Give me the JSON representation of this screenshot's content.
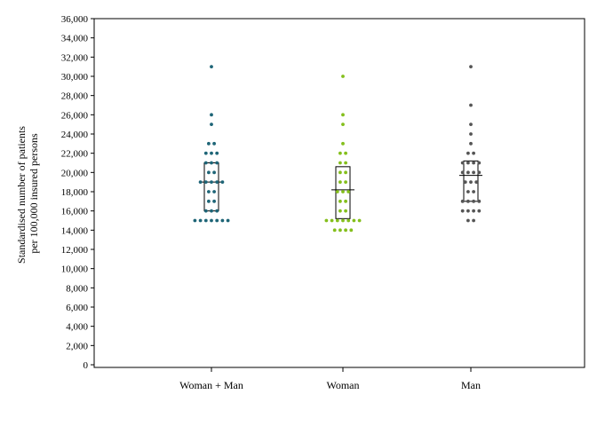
{
  "chart_data": {
    "type": "scatter",
    "subtype": "dot-strip-with-iqr-box",
    "ylabel": [
      "Standardised number of patients",
      "per 100,000 insured persons"
    ],
    "ylim": [
      0,
      36000
    ],
    "yticks": [
      0,
      2000,
      4000,
      6000,
      8000,
      10000,
      12000,
      14000,
      16000,
      18000,
      20000,
      22000,
      24000,
      26000,
      28000,
      30000,
      32000,
      34000,
      36000
    ],
    "ytick_labels": [
      "0",
      "2,000",
      "4,000",
      "6,000",
      "8,000",
      "10,000",
      "12,000",
      "14,000",
      "16,000",
      "18,000",
      "20,000",
      "22,000",
      "24,000",
      "26,000",
      "28,000",
      "30,000",
      "32,000",
      "34,000",
      "36,000"
    ],
    "grid": false,
    "legend": false,
    "categories": [
      "Woman + Man",
      "Woman",
      "Man"
    ],
    "series": [
      {
        "color": "#1e6577",
        "values": [
          31000,
          26000,
          25000,
          23000,
          23000,
          22000,
          22000,
          22000,
          21000,
          21000,
          21000,
          20000,
          20000,
          19000,
          19000,
          19000,
          19000,
          19000,
          18000,
          18000,
          17000,
          17000,
          16000,
          16000,
          16000,
          15000,
          15000,
          15000,
          15000,
          15000,
          15000,
          15000
        ],
        "box": {
          "q1": 16000,
          "median": 19000,
          "q3": 21000
        }
      },
      {
        "color": "#84bf1c",
        "values": [
          30000,
          26000,
          25000,
          23000,
          22000,
          22000,
          21000,
          21000,
          20000,
          20000,
          19000,
          19000,
          18000,
          18000,
          18000,
          17000,
          17000,
          16000,
          16000,
          15000,
          15000,
          15000,
          15000,
          15000,
          15000,
          15000,
          14000,
          14000,
          14000,
          14000
        ],
        "box": {
          "q1": 15200,
          "median": 18200,
          "q3": 20600
        }
      },
      {
        "color": "#555555",
        "values": [
          31000,
          27000,
          25000,
          24000,
          23000,
          22000,
          22000,
          21000,
          21000,
          21000,
          21000,
          20000,
          20000,
          20000,
          20000,
          19000,
          19000,
          19000,
          18000,
          18000,
          17000,
          17000,
          17000,
          17000,
          16000,
          16000,
          16000,
          16000,
          15000,
          15000
        ],
        "box": {
          "q1": 17000,
          "median": 19700,
          "q3": 21200
        }
      }
    ]
  }
}
